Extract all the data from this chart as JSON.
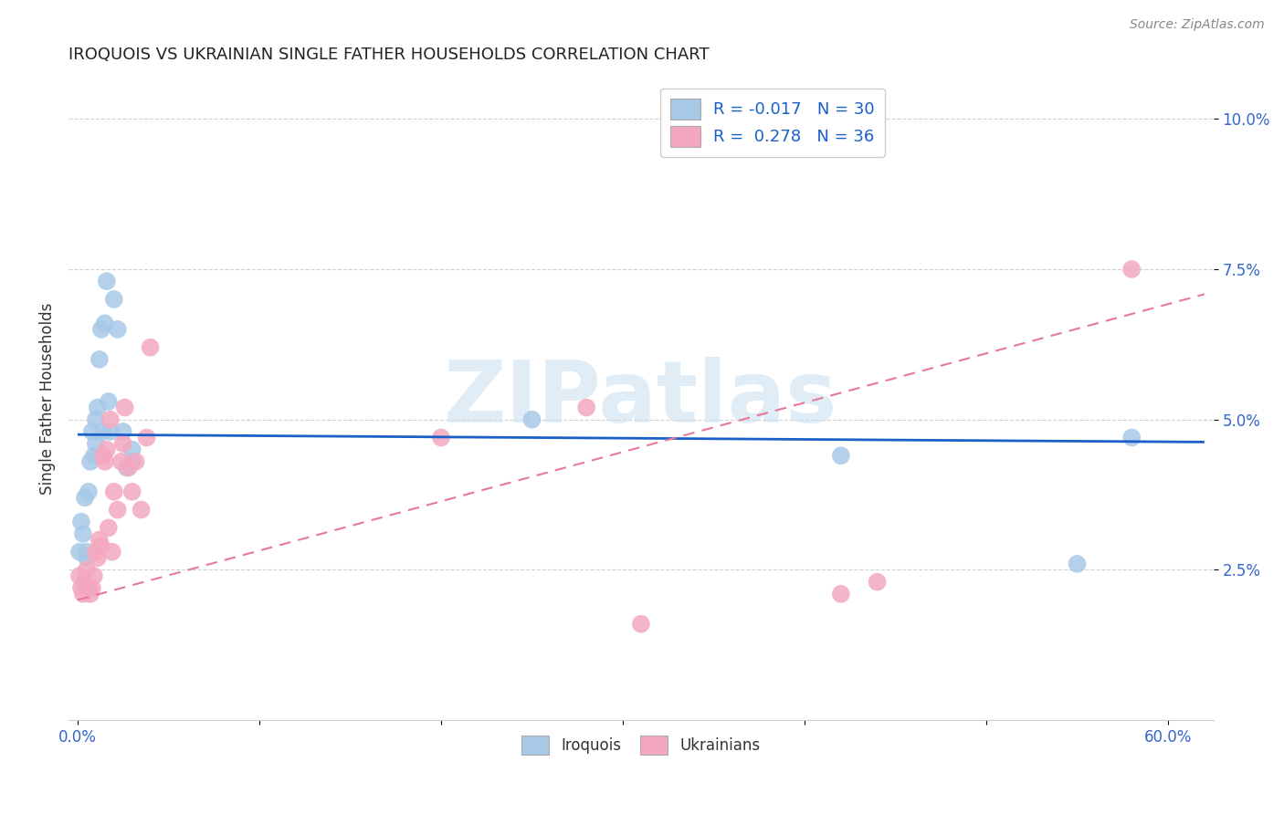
{
  "title": "IROQUOIS VS UKRAINIAN SINGLE FATHER HOUSEHOLDS CORRELATION CHART",
  "source": "Source: ZipAtlas.com",
  "ylabel": "Single Father Households",
  "xlim": [
    -0.005,
    0.625
  ],
  "ylim": [
    0.0,
    0.107
  ],
  "watermark": "ZIPatlas",
  "legend_iroquois_R": "-0.017",
  "legend_iroquois_N": "30",
  "legend_ukrainian_R": "0.278",
  "legend_ukrainian_N": "36",
  "iroquois_color": "#a8c8e8",
  "ukrainian_color": "#f4a8c0",
  "iroquois_line_color": "#1a5fc8",
  "ukrainian_line_color": "#e87898",
  "background_color": "#ffffff",
  "iroquois_x": [
    0.001,
    0.002,
    0.003,
    0.004,
    0.005,
    0.005,
    0.006,
    0.007,
    0.008,
    0.009,
    0.01,
    0.01,
    0.011,
    0.012,
    0.013,
    0.014,
    0.015,
    0.016,
    0.017,
    0.018,
    0.02,
    0.022,
    0.025,
    0.027,
    0.03,
    0.03,
    0.25,
    0.42,
    0.55,
    0.58
  ],
  "iroquois_y": [
    0.028,
    0.033,
    0.031,
    0.037,
    0.028,
    0.027,
    0.038,
    0.043,
    0.048,
    0.044,
    0.05,
    0.046,
    0.052,
    0.06,
    0.065,
    0.048,
    0.066,
    0.073,
    0.053,
    0.048,
    0.07,
    0.065,
    0.048,
    0.042,
    0.043,
    0.045,
    0.05,
    0.044,
    0.026,
    0.047
  ],
  "ukrainian_x": [
    0.001,
    0.002,
    0.003,
    0.004,
    0.005,
    0.006,
    0.007,
    0.008,
    0.009,
    0.01,
    0.011,
    0.012,
    0.013,
    0.014,
    0.015,
    0.016,
    0.017,
    0.018,
    0.019,
    0.02,
    0.022,
    0.024,
    0.025,
    0.026,
    0.028,
    0.03,
    0.032,
    0.035,
    0.038,
    0.04,
    0.2,
    0.28,
    0.31,
    0.42,
    0.44,
    0.58
  ],
  "ukrainian_y": [
    0.024,
    0.022,
    0.021,
    0.023,
    0.025,
    0.022,
    0.021,
    0.022,
    0.024,
    0.028,
    0.027,
    0.03,
    0.029,
    0.044,
    0.043,
    0.045,
    0.032,
    0.05,
    0.028,
    0.038,
    0.035,
    0.043,
    0.046,
    0.052,
    0.042,
    0.038,
    0.043,
    0.035,
    0.047,
    0.062,
    0.047,
    0.052,
    0.016,
    0.021,
    0.023,
    0.075
  ]
}
